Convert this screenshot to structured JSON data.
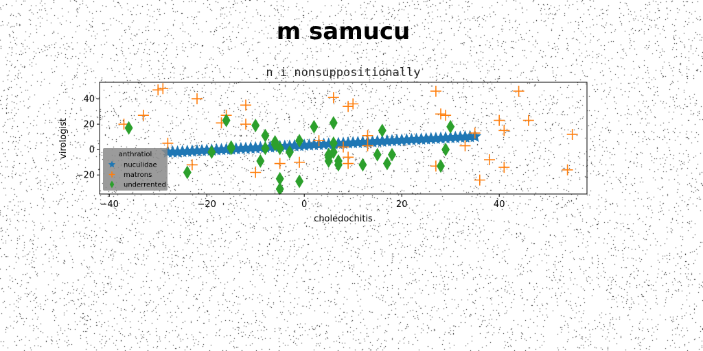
{
  "suptitle": "m samucu",
  "chart_data": {
    "type": "scatter",
    "title": "n i nonsuppositionally",
    "xlabel": "choledochitis",
    "ylabel": "virologist",
    "xlim": [
      -42,
      58
    ],
    "ylim": [
      -35,
      53
    ],
    "xticks": [
      -40,
      -20,
      0,
      20,
      40
    ],
    "yticks": [
      -20,
      0,
      20,
      40
    ],
    "grid": false,
    "legend": {
      "title": "anthratiol",
      "placement": "lower-left"
    },
    "series": [
      {
        "name": "nuculidae",
        "marker": "star",
        "color": "#1f77b4",
        "points": [
          [
            -28,
            -2
          ],
          [
            -27,
            -2
          ],
          [
            -26,
            -2
          ],
          [
            -25,
            -1.7
          ],
          [
            -24,
            -1.5
          ],
          [
            -23,
            -1.3
          ],
          [
            -22,
            -1.1
          ],
          [
            -21,
            -0.9
          ],
          [
            -20,
            -0.7
          ],
          [
            -19,
            -0.5
          ],
          [
            -18,
            -0.3
          ],
          [
            -17,
            -0.1
          ],
          [
            -16,
            0.1
          ],
          [
            -15,
            0.3
          ],
          [
            -14,
            0.5
          ],
          [
            -13,
            0.7
          ],
          [
            -12,
            0.9
          ],
          [
            -11,
            1.1
          ],
          [
            -10,
            1.3
          ],
          [
            -9,
            1.5
          ],
          [
            -8,
            1.7
          ],
          [
            -7,
            1.9
          ],
          [
            -6,
            2.1
          ],
          [
            -5,
            2.3
          ],
          [
            -4,
            2.5
          ],
          [
            -3,
            2.7
          ],
          [
            -2,
            2.9
          ],
          [
            -1,
            3.1
          ],
          [
            0,
            3.3
          ],
          [
            1,
            3.5
          ],
          [
            2,
            3.7
          ],
          [
            3,
            3.9
          ],
          [
            4,
            4.1
          ],
          [
            5,
            4.3
          ],
          [
            6,
            4.5
          ],
          [
            7,
            4.7
          ],
          [
            8,
            4.9
          ],
          [
            9,
            5.1
          ],
          [
            10,
            5.3
          ],
          [
            11,
            5.5
          ],
          [
            12,
            5.7
          ],
          [
            13,
            5.9
          ],
          [
            14,
            6.1
          ],
          [
            15,
            6.3
          ],
          [
            16,
            6.5
          ],
          [
            17,
            6.7
          ],
          [
            18,
            6.9
          ],
          [
            19,
            7.1
          ],
          [
            20,
            7.3
          ],
          [
            21,
            7.5
          ],
          [
            22,
            7.7
          ],
          [
            23,
            7.9
          ],
          [
            24,
            8.1
          ],
          [
            25,
            8.3
          ],
          [
            26,
            8.5
          ],
          [
            27,
            8.7
          ],
          [
            28,
            8.9
          ],
          [
            29,
            9.1
          ],
          [
            30,
            9.3
          ],
          [
            31,
            9.5
          ],
          [
            32,
            9.7
          ],
          [
            33,
            9.9
          ],
          [
            34,
            10.1
          ],
          [
            35,
            10.3
          ]
        ]
      },
      {
        "name": "matrons",
        "marker": "plus",
        "color": "#ff7f0e",
        "points": [
          [
            -37,
            20
          ],
          [
            -33,
            27
          ],
          [
            -30,
            47
          ],
          [
            -29,
            48
          ],
          [
            -28,
            5
          ],
          [
            -23,
            -12
          ],
          [
            -22,
            40
          ],
          [
            -17,
            21
          ],
          [
            -16,
            27
          ],
          [
            -12,
            35
          ],
          [
            -12,
            20
          ],
          [
            -10,
            -18
          ],
          [
            -5,
            -11
          ],
          [
            -1,
            -10
          ],
          [
            3,
            7
          ],
          [
            6,
            41
          ],
          [
            8,
            2
          ],
          [
            9,
            -6
          ],
          [
            9,
            -11
          ],
          [
            9,
            34
          ],
          [
            10,
            36
          ],
          [
            13,
            11
          ],
          [
            13,
            3
          ],
          [
            27,
            46
          ],
          [
            27,
            -13
          ],
          [
            28,
            28
          ],
          [
            29,
            27
          ],
          [
            33,
            3
          ],
          [
            35,
            13
          ],
          [
            36,
            -24
          ],
          [
            38,
            -8
          ],
          [
            40,
            23
          ],
          [
            41,
            15
          ],
          [
            41,
            -14
          ],
          [
            44,
            46
          ],
          [
            46,
            23
          ],
          [
            54,
            -16
          ],
          [
            55,
            12
          ]
        ]
      },
      {
        "name": "underrented",
        "marker": "diamond",
        "color": "#2ca02c",
        "points": [
          [
            -36,
            17
          ],
          [
            -24,
            -18
          ],
          [
            -19,
            -2
          ],
          [
            -16,
            23
          ],
          [
            -15,
            2
          ],
          [
            -15,
            1
          ],
          [
            -10,
            19
          ],
          [
            -9,
            -9
          ],
          [
            -8,
            11
          ],
          [
            -8,
            1
          ],
          [
            -6,
            6
          ],
          [
            -6,
            4
          ],
          [
            -5,
            1
          ],
          [
            -5,
            -23
          ],
          [
            -5,
            -31
          ],
          [
            -3,
            -2
          ],
          [
            -1,
            7
          ],
          [
            -1,
            -25
          ],
          [
            2,
            18
          ],
          [
            5,
            -4
          ],
          [
            5,
            -6
          ],
          [
            5,
            -9
          ],
          [
            6,
            5
          ],
          [
            6,
            -2
          ],
          [
            6,
            21
          ],
          [
            7,
            -12
          ],
          [
            7,
            -9
          ],
          [
            12,
            -12
          ],
          [
            15,
            -4
          ],
          [
            16,
            15
          ],
          [
            17,
            -11
          ],
          [
            18,
            -4
          ],
          [
            28,
            -13
          ],
          [
            29,
            0
          ],
          [
            30,
            18
          ]
        ]
      }
    ]
  }
}
